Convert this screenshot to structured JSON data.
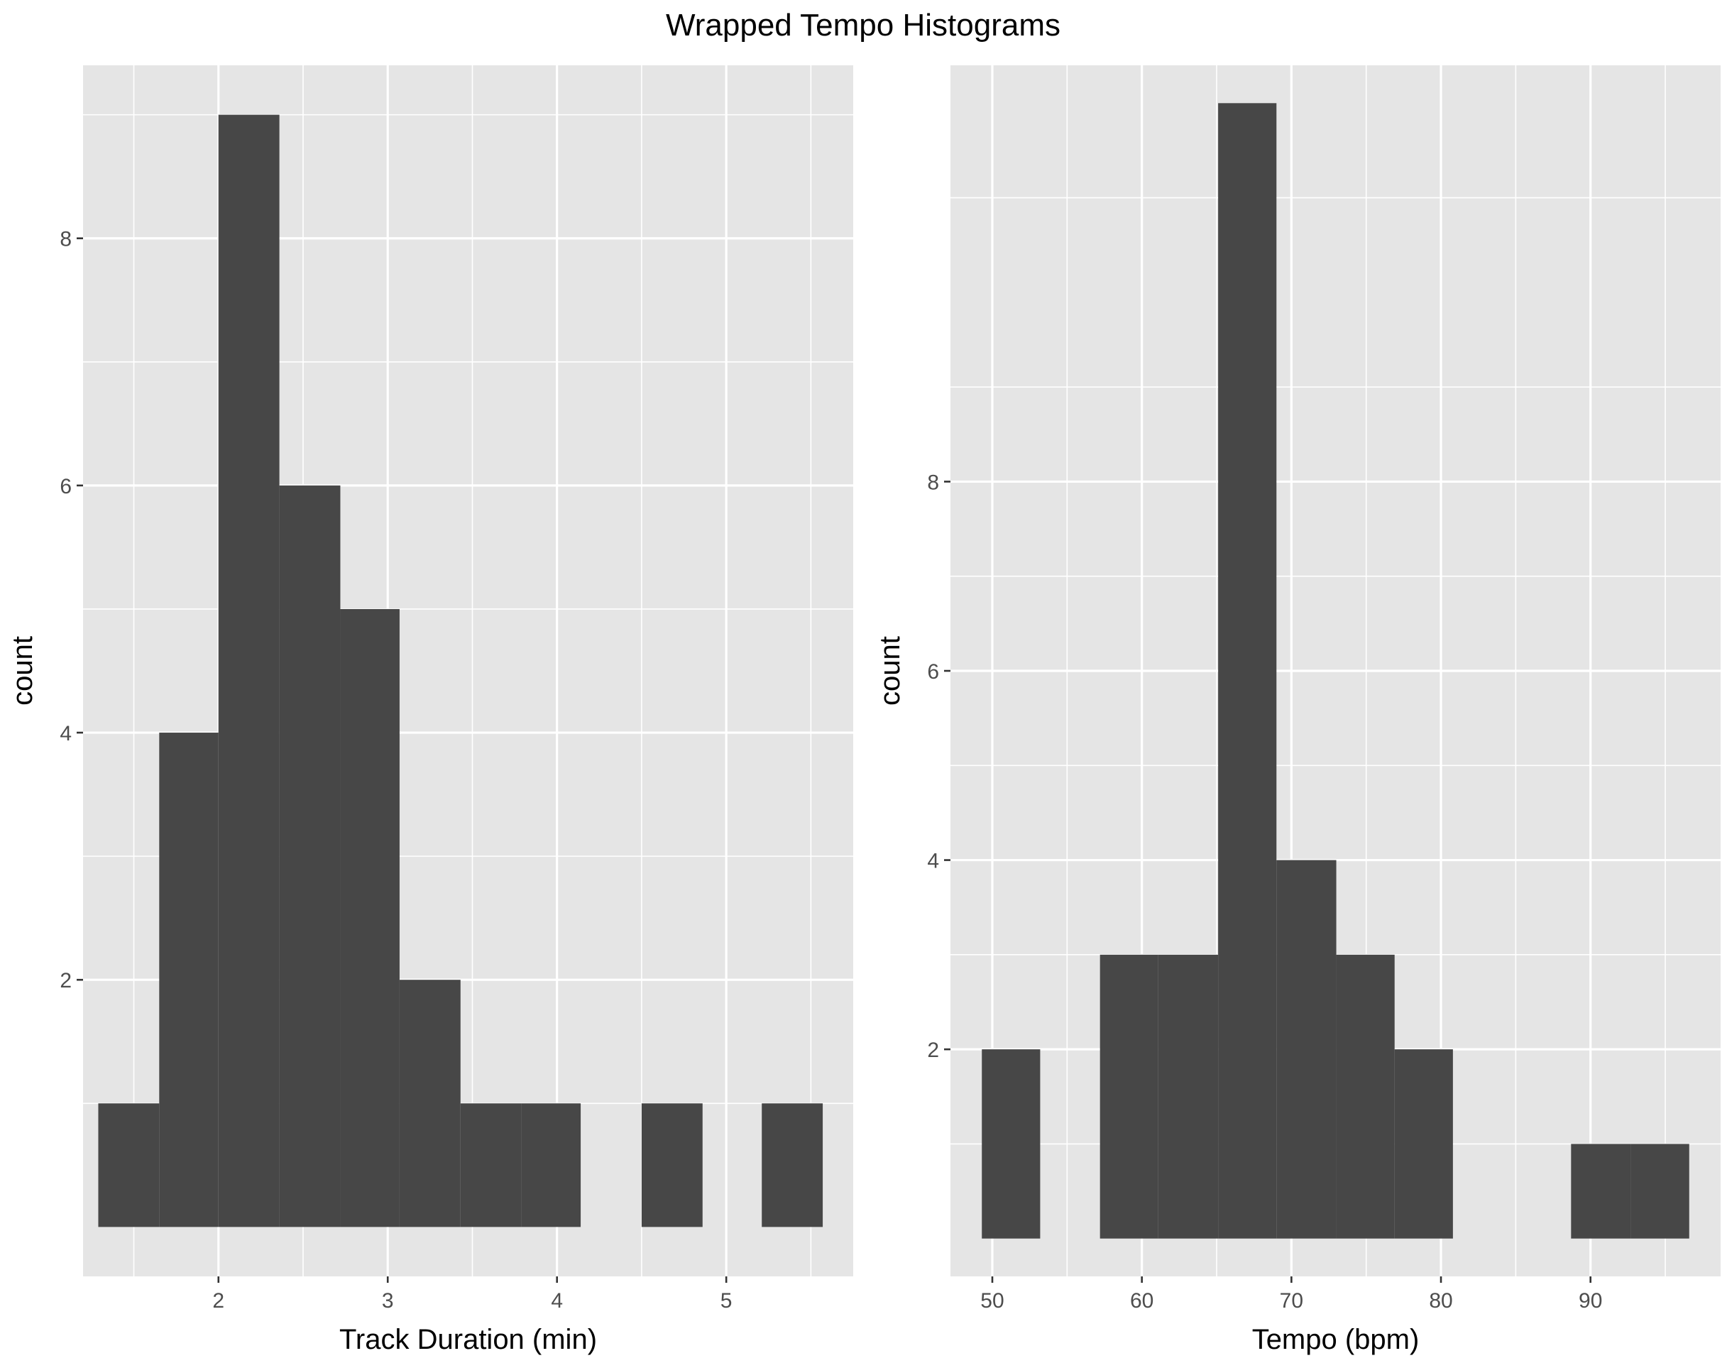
{
  "title": "Wrapped Tempo Histograms",
  "chart_data": [
    {
      "type": "bar",
      "subtype": "histogram",
      "xlabel": "Track Duration (min)",
      "ylabel": "count",
      "xlim": [
        1.2,
        5.75
      ],
      "ylim": [
        -0.4,
        9.4
      ],
      "x_ticks": [
        2,
        3,
        4,
        5
      ],
      "y_ticks": [
        2,
        4,
        6,
        8
      ],
      "grid": true,
      "bins": [
        {
          "x0": 1.29,
          "x1": 1.65,
          "count": 1
        },
        {
          "x0": 1.65,
          "x1": 2.0,
          "count": 4
        },
        {
          "x0": 2.0,
          "x1": 2.36,
          "count": 9
        },
        {
          "x0": 2.36,
          "x1": 2.72,
          "count": 6
        },
        {
          "x0": 2.72,
          "x1": 3.07,
          "count": 5
        },
        {
          "x0": 3.07,
          "x1": 3.43,
          "count": 2
        },
        {
          "x0": 3.43,
          "x1": 3.79,
          "count": 1
        },
        {
          "x0": 3.79,
          "x1": 4.14,
          "count": 1
        },
        {
          "x0": 4.14,
          "x1": 4.5,
          "count": 0
        },
        {
          "x0": 4.5,
          "x1": 4.86,
          "count": 1
        },
        {
          "x0": 4.86,
          "x1": 5.21,
          "count": 0
        },
        {
          "x0": 5.21,
          "x1": 5.57,
          "count": 1
        }
      ]
    },
    {
      "type": "bar",
      "subtype": "histogram",
      "xlabel": "Tempo (bpm)",
      "ylabel": "count",
      "xlim": [
        47.2,
        98.7
      ],
      "ylim": [
        -0.4,
        12.4
      ],
      "x_ticks": [
        50,
        60,
        70,
        80,
        90
      ],
      "y_ticks": [
        2,
        4,
        6,
        8
      ],
      "grid": true,
      "bins": [
        {
          "x0": 49.3,
          "x1": 53.2,
          "count": 2
        },
        {
          "x0": 53.2,
          "x1": 57.2,
          "count": 0
        },
        {
          "x0": 57.2,
          "x1": 61.1,
          "count": 3
        },
        {
          "x0": 61.1,
          "x1": 65.1,
          "count": 3
        },
        {
          "x0": 65.1,
          "x1": 69.0,
          "count": 12
        },
        {
          "x0": 69.0,
          "x1": 73.0,
          "count": 4
        },
        {
          "x0": 73.0,
          "x1": 76.9,
          "count": 3
        },
        {
          "x0": 76.9,
          "x1": 80.8,
          "count": 2
        },
        {
          "x0": 80.8,
          "x1": 84.8,
          "count": 0
        },
        {
          "x0": 84.8,
          "x1": 88.7,
          "count": 0
        },
        {
          "x0": 88.7,
          "x1": 92.7,
          "count": 1
        },
        {
          "x0": 92.7,
          "x1": 96.6,
          "count": 1
        }
      ]
    }
  ]
}
